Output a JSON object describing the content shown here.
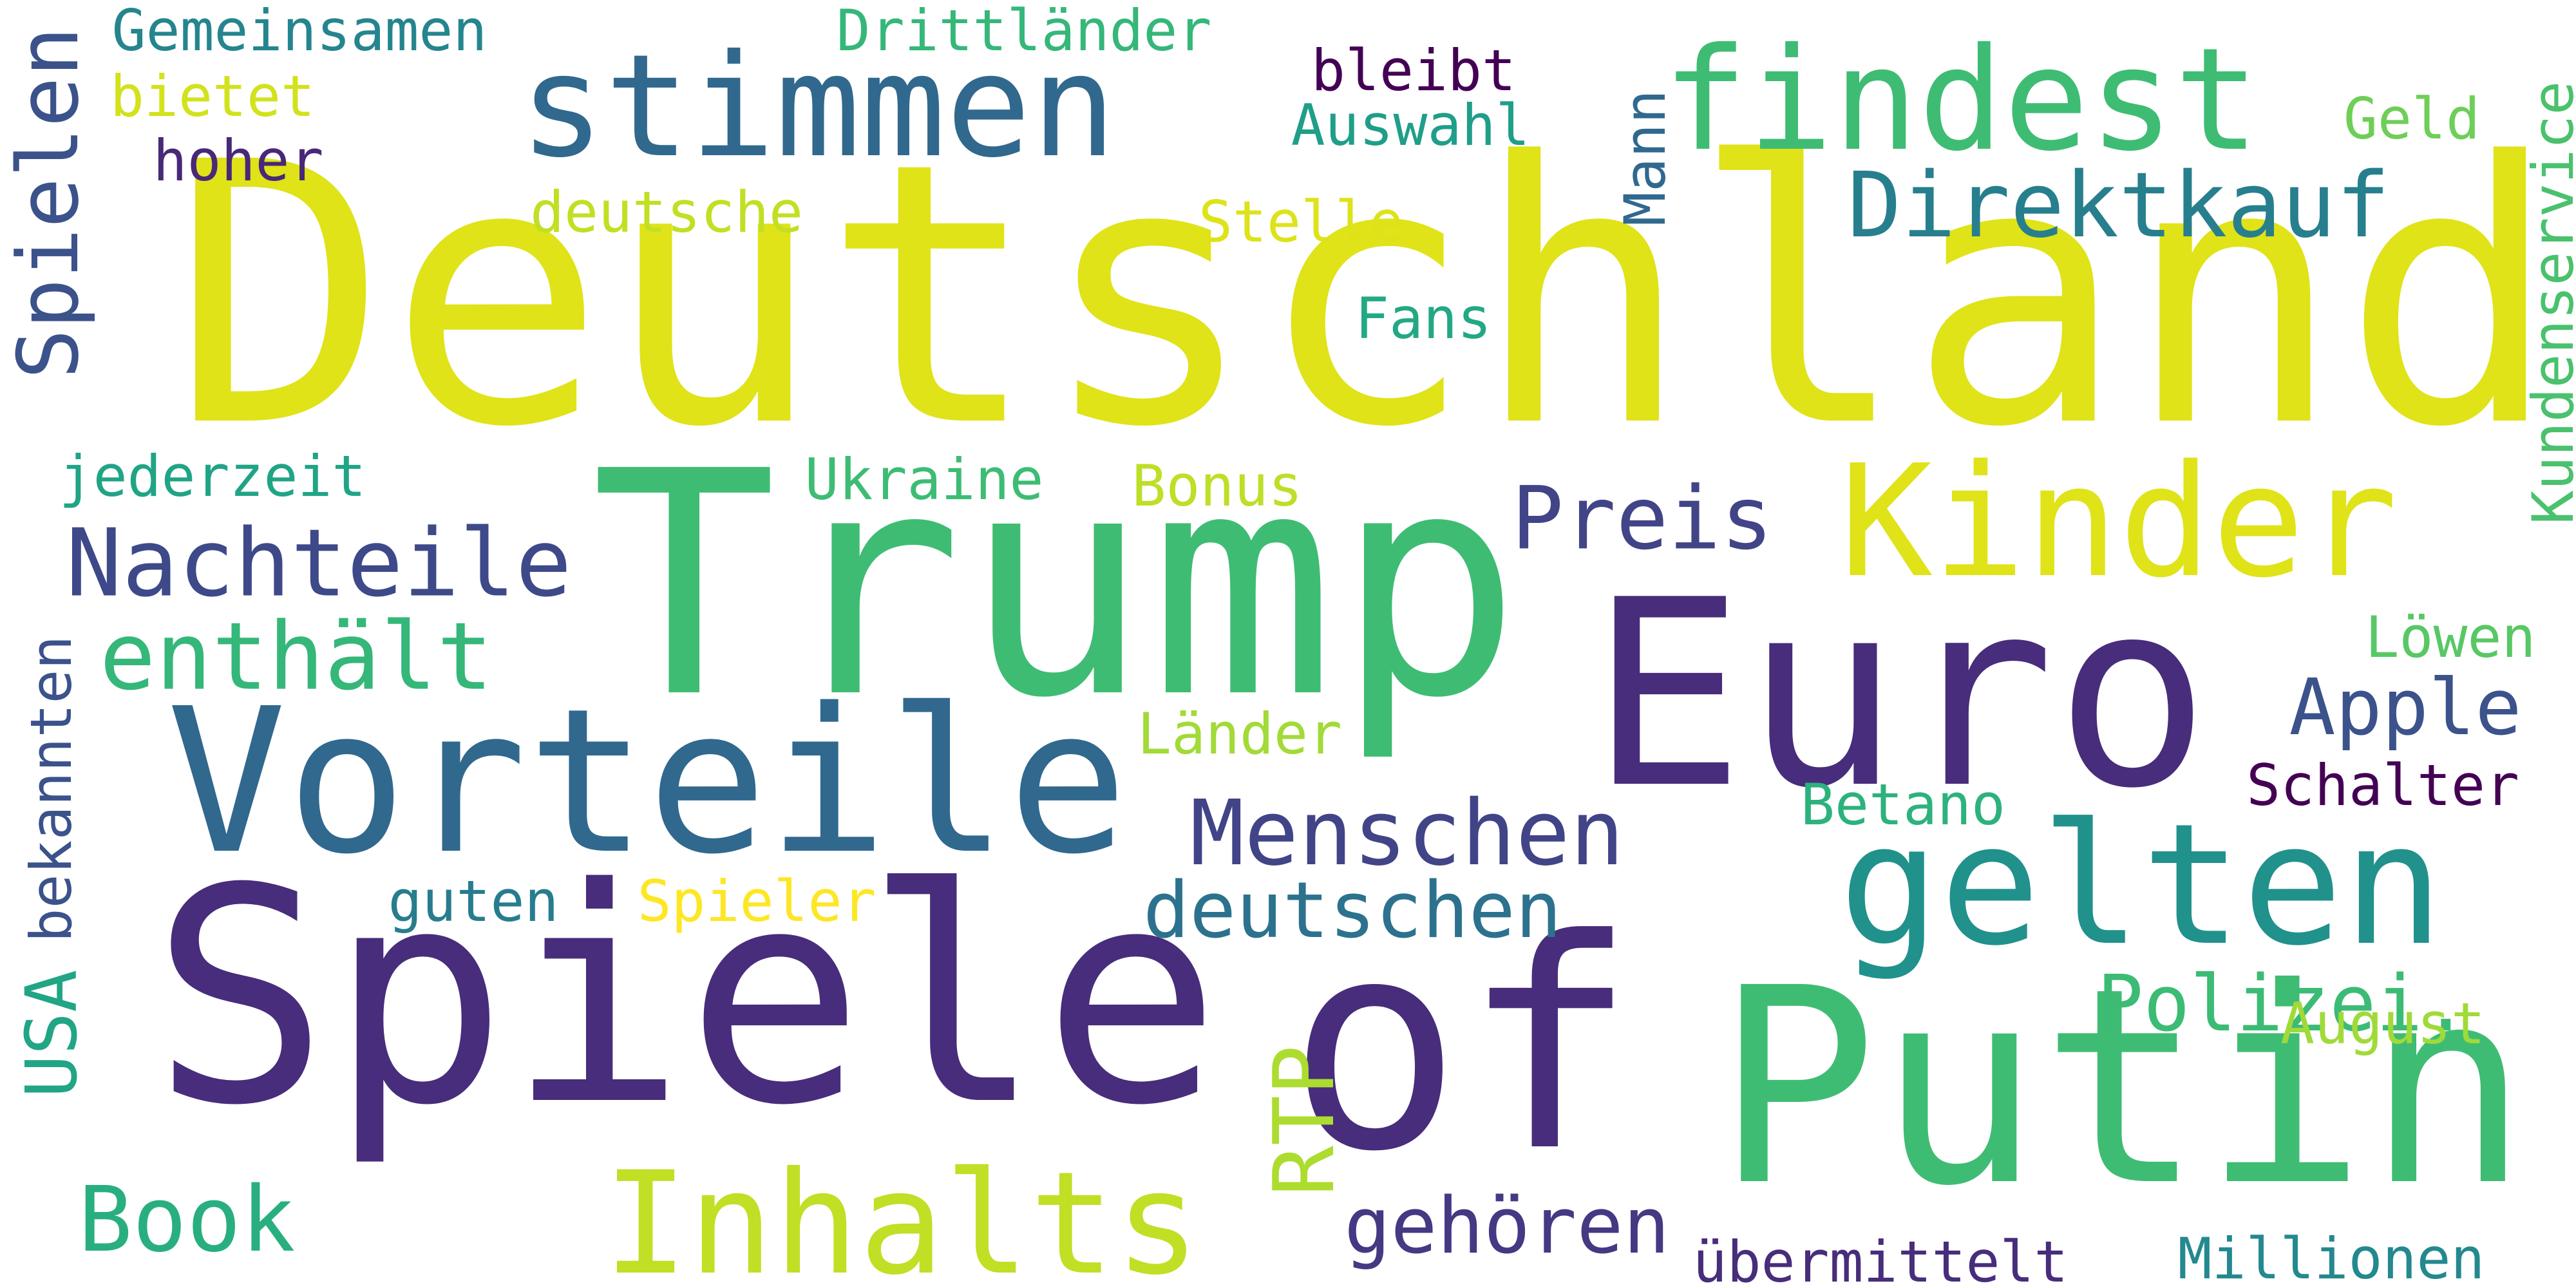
{
  "words": [
    {
      "text": "Deutschland",
      "color": "#dfe318"
    },
    {
      "text": "Trump",
      "color": "#3fbc73"
    },
    {
      "text": "Spiele",
      "color": "#472d7b"
    },
    {
      "text": "Putin",
      "color": "#3fbc73"
    },
    {
      "text": "Euro",
      "color": "#472d7b"
    },
    {
      "text": "Vorteile",
      "color": "#31688e"
    },
    {
      "text": "of",
      "color": "#472d7b"
    },
    {
      "text": "stimmen",
      "color": "#31688e"
    },
    {
      "text": "findest",
      "color": "#3fbc73"
    },
    {
      "text": "gelten",
      "color": "#21918c"
    },
    {
      "text": "Kinder",
      "color": "#dfe318"
    },
    {
      "text": "Inhalts",
      "color": "#c0df25"
    },
    {
      "text": "Nachteile",
      "color": "#3e4989"
    },
    {
      "text": "enthält",
      "color": "#35b779"
    },
    {
      "text": "Menschen",
      "color": "#414487"
    },
    {
      "text": "Direktkauf",
      "color": "#277f8e"
    },
    {
      "text": "Preis",
      "color": "#414487"
    },
    {
      "text": "Apple",
      "color": "#3b528b"
    },
    {
      "text": "deutschen",
      "color": "#2c728e"
    },
    {
      "text": "Polizei.",
      "color": "#3cbb75"
    },
    {
      "text": "Book",
      "color": "#29af7f"
    },
    {
      "text": "gehören",
      "color": "#443983"
    },
    {
      "text": "Spielen",
      "color": "#3b528b"
    },
    {
      "text": "Kundenservice",
      "color": "#4ac16d"
    },
    {
      "text": "Gemeinsamen",
      "color": "#25858e"
    },
    {
      "text": "Drittländer",
      "color": "#35b779"
    },
    {
      "text": "bleibt",
      "color": "#440154"
    },
    {
      "text": "bietet",
      "color": "#d2e21b"
    },
    {
      "text": "hoher",
      "color": "#482878"
    },
    {
      "text": "Auswahl",
      "color": "#1f9e89"
    },
    {
      "text": "Geld",
      "color": "#6ece58"
    },
    {
      "text": "deutsche",
      "color": "#c2df23"
    },
    {
      "text": "Stelle",
      "color": "#dde318"
    },
    {
      "text": "Mann",
      "color": "#31688e"
    },
    {
      "text": "Fans",
      "color": "#22a884"
    },
    {
      "text": "jederzeit",
      "color": "#20a486"
    },
    {
      "text": "Ukraine",
      "color": "#3dbc74"
    },
    {
      "text": "Bonus",
      "color": "#bddf26"
    },
    {
      "text": "Löwen",
      "color": "#58c765"
    },
    {
      "text": "Länder",
      "color": "#a2da37"
    },
    {
      "text": "Schalter",
      "color": "#440154"
    },
    {
      "text": "Betano",
      "color": "#2db27d"
    },
    {
      "text": "guten",
      "color": "#287c8e"
    },
    {
      "text": "Spieler",
      "color": "#fde725"
    },
    {
      "text": "bekannten",
      "color": "#3b528b"
    },
    {
      "text": "USA",
      "color": "#21a585"
    },
    {
      "text": "RTP",
      "color": "#addc30"
    },
    {
      "text": "August",
      "color": "#a0da39"
    },
    {
      "text": "übermittelt",
      "color": "#472d7b"
    },
    {
      "text": "Millionen",
      "color": "#23898e"
    }
  ]
}
